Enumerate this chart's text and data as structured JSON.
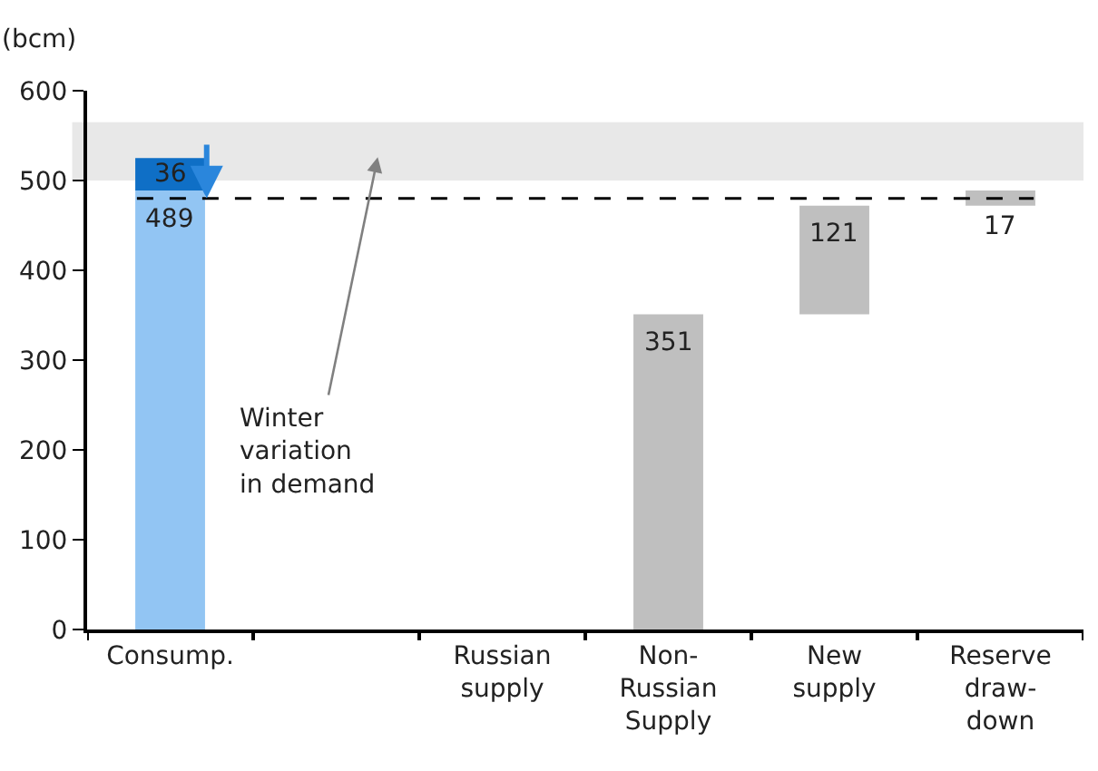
{
  "chart_data": {
    "type": "bar",
    "ylabel": "(bcm)",
    "categories": [
      "Consump.",
      null,
      "Russian supply",
      "Non-Russian Supply",
      "New supply",
      "Reserve draw-down"
    ],
    "series": [
      {
        "colors": [
          "#92c5f3",
          null,
          null,
          "#bfbfbf",
          "#bfbfbf",
          "#bfbfbf"
        ],
        "values": [
          489,
          null,
          null,
          351,
          121,
          17
        ],
        "base": [
          0,
          null,
          null,
          0,
          351,
          472
        ]
      },
      {
        "color": "#0f6fc6",
        "values": [
          36,
          null,
          null,
          null,
          null,
          null
        ],
        "base": [
          489,
          null,
          null,
          null,
          null,
          null
        ]
      }
    ],
    "data_labels": true,
    "ylim": [
      0,
      600
    ],
    "yticks": [
      0,
      100,
      200,
      300,
      400,
      500,
      600
    ],
    "grid": false,
    "ref_lines": [
      {
        "axis": "y",
        "value": 480,
        "line_style": "dashed",
        "color": "#000000"
      }
    ],
    "bands": [
      {
        "axis": "y",
        "from": 500,
        "to": 565,
        "color": "#e8e8e8"
      }
    ],
    "annotations": [
      "Winter variation in demand"
    ]
  }
}
